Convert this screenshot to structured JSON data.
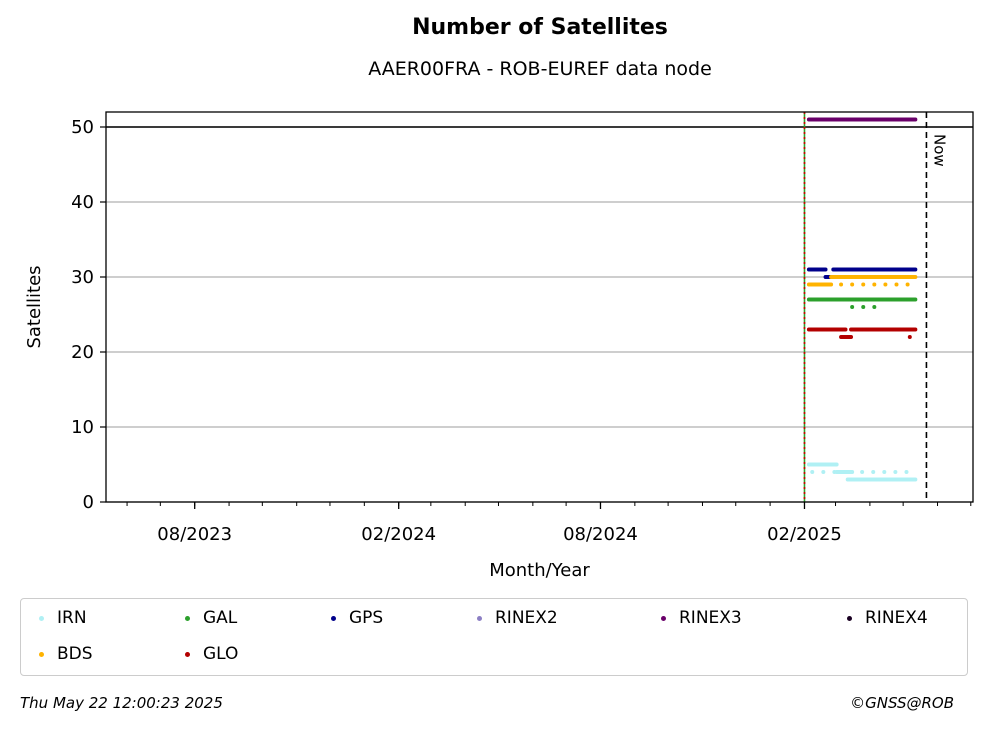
{
  "chart_data": {
    "type": "scatter",
    "title": "Number of Satellites",
    "subtitle": "AAER00FRA - ROB-EUREF data node",
    "xlabel": "Month/Year",
    "ylabel": "Satellites",
    "xlim": [
      "2023-05-13",
      "2025-07-03"
    ],
    "ylim": [
      0,
      52
    ],
    "yticks": [
      0,
      10,
      20,
      30,
      40,
      50
    ],
    "xticks": [
      {
        "label": "08/2023",
        "date": "2023-08-01"
      },
      {
        "label": "02/2024",
        "date": "2024-02-01"
      },
      {
        "label": "08/2024",
        "date": "2024-08-01"
      },
      {
        "label": "02/2025",
        "date": "2025-02-01"
      }
    ],
    "grid": "horizontal",
    "reference_lines": [
      {
        "type": "hline",
        "y": 50,
        "color": "#000000",
        "style": "solid"
      },
      {
        "type": "vline",
        "date": "2025-02-01",
        "color": "#2ca02c",
        "style": "solid"
      },
      {
        "type": "vline",
        "date": "2025-02-01",
        "color": "#cc0000",
        "style": "dotted"
      },
      {
        "type": "vline",
        "date": "2025-05-22",
        "color": "#000000",
        "style": "dashed",
        "label": "Now"
      }
    ],
    "series": [
      {
        "name": "IRN",
        "color": "#b0f0f4",
        "segments": [
          {
            "from": "2025-02-05",
            "to": "2025-03-02",
            "value": 5
          },
          {
            "from": "2025-02-08",
            "to": "2025-03-03",
            "value": 4,
            "sparse": true
          },
          {
            "from": "2025-03-02",
            "to": "2025-03-16",
            "value": 4
          },
          {
            "from": "2025-03-12",
            "to": "2025-05-12",
            "value": 3
          },
          {
            "from": "2025-03-25",
            "to": "2025-05-12",
            "value": 4,
            "sparse": true
          }
        ]
      },
      {
        "name": "GAL",
        "color": "#2ca02c",
        "segments": [
          {
            "from": "2025-02-05",
            "to": "2025-05-12",
            "value": 27
          },
          {
            "from": "2025-03-16",
            "to": "2025-04-05",
            "value": 26,
            "sparse": true
          }
        ]
      },
      {
        "name": "GPS",
        "color": "#00008b",
        "segments": [
          {
            "from": "2025-02-05",
            "to": "2025-02-20",
            "value": 31
          },
          {
            "from": "2025-02-20",
            "to": "2025-02-27",
            "value": 30
          },
          {
            "from": "2025-02-27",
            "to": "2025-05-12",
            "value": 31
          }
        ]
      },
      {
        "name": "RINEX2",
        "color": "#8c7fc4",
        "segments": []
      },
      {
        "name": "RINEX3",
        "color": "#6a006a",
        "segments": [
          {
            "from": "2025-02-05",
            "to": "2025-05-12",
            "value": 51
          }
        ]
      },
      {
        "name": "RINEX4",
        "color": "#1a0022",
        "segments": []
      },
      {
        "name": "BDS",
        "color": "#ffb300",
        "segments": [
          {
            "from": "2025-02-05",
            "to": "2025-02-25",
            "value": 29
          },
          {
            "from": "2025-02-25",
            "to": "2025-05-12",
            "value": 30
          },
          {
            "from": "2025-03-06",
            "to": "2025-05-12",
            "value": 29,
            "sparse": true
          }
        ]
      },
      {
        "name": "GLO",
        "color": "#b30000",
        "segments": [
          {
            "from": "2025-02-05",
            "to": "2025-03-10",
            "value": 23
          },
          {
            "from": "2025-03-06",
            "to": "2025-03-15",
            "value": 22
          },
          {
            "from": "2025-03-15",
            "to": "2025-05-12",
            "value": 23
          },
          {
            "from": "2025-05-07",
            "to": "2025-05-12",
            "value": 22,
            "sparse": true
          }
        ]
      }
    ]
  },
  "footer": {
    "timestamp": "Thu May 22 12:00:23 2025",
    "credit": "©GNSS@ROB"
  }
}
